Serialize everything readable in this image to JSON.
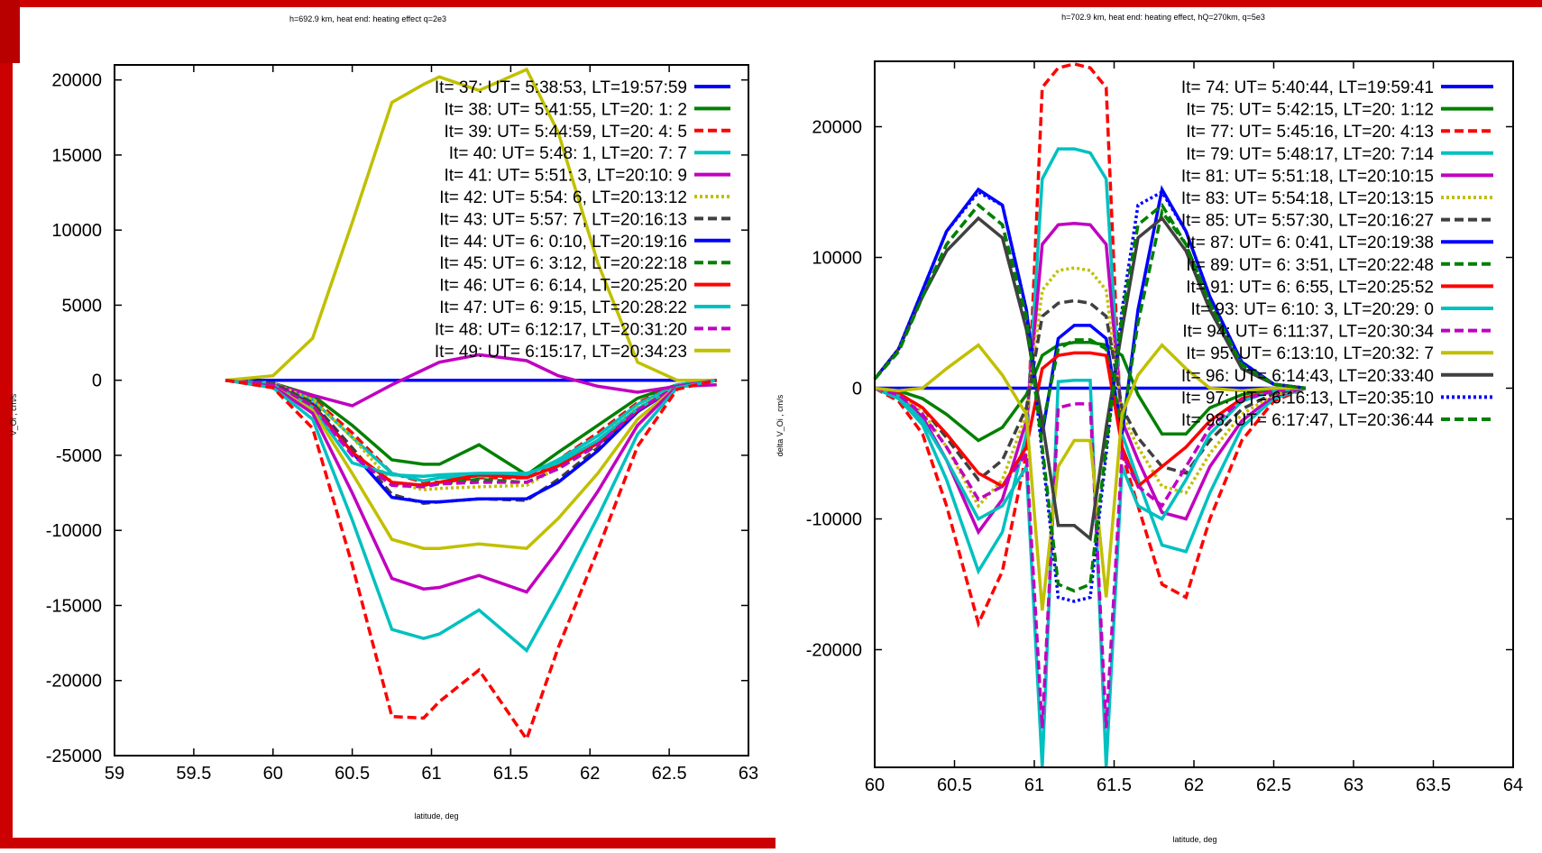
{
  "colors": {
    "frame_red": "#cc0000"
  },
  "chart_data": [
    {
      "type": "line",
      "title": "h=692.9 km, heat end: heating effect q=2e3",
      "xlabel": "latitude, deg",
      "ylabel": "V_Oi , cm/s",
      "xlim": [
        59,
        63
      ],
      "ylim": [
        -25000,
        21000
      ],
      "xticks": [
        59,
        59.5,
        60,
        60.5,
        61,
        61.5,
        62,
        62.5,
        63
      ],
      "xtick_labels": [
        "59",
        "59.5",
        "60",
        "60.5",
        "61",
        "61.5",
        "62",
        "62.5",
        "63"
      ],
      "yticks": [
        -25000,
        -20000,
        -15000,
        -10000,
        -5000,
        0,
        5000,
        10000,
        15000,
        20000
      ],
      "ytick_labels": [
        "-25000",
        "-20000",
        "-15000",
        "-10000",
        "-5000",
        "0",
        "5000",
        "10000",
        "15000",
        "20000"
      ],
      "grid": false,
      "legend_position": "top-right",
      "x": [
        59.7,
        60,
        60.25,
        60.5,
        60.75,
        60.95,
        61.05,
        61.3,
        61.6,
        61.8,
        62.05,
        62.3,
        62.55,
        62.8
      ],
      "series": [
        {
          "name": "It= 37: UT= 5:38:53, LT=19:57:59",
          "color": "#0000ff",
          "dash": "solid",
          "values": [
            0,
            0,
            0,
            0,
            0,
            0,
            0,
            0,
            0,
            0,
            0,
            0,
            0,
            0
          ]
        },
        {
          "name": "It= 38: UT= 5:41:55, LT=20: 1: 2",
          "color": "#008000",
          "dash": "solid",
          "values": [
            0,
            -200,
            -1000,
            -3000,
            -5300,
            -5600,
            -5600,
            -4300,
            -6300,
            -4800,
            -3000,
            -1200,
            -300,
            0
          ]
        },
        {
          "name": "It= 39: UT= 5:44:59, LT=20: 4: 5",
          "color": "#ff0000",
          "dash": "dashed",
          "values": [
            0,
            -200,
            -1200,
            -3500,
            -6200,
            -6800,
            -6800,
            -6500,
            -6500,
            -5300,
            -3500,
            -1500,
            -300,
            0
          ]
        },
        {
          "name": "It= 40: UT= 5:48: 1, LT=20: 7: 7",
          "color": "#00c0c0",
          "dash": "solid",
          "values": [
            0,
            -200,
            -1300,
            -3800,
            -6200,
            -6700,
            -6500,
            -6400,
            -6300,
            -5300,
            -3700,
            -1600,
            -300,
            0
          ]
        },
        {
          "name": "It= 41: UT= 5:51: 3, LT=20:10: 9",
          "color": "#c000c0",
          "dash": "solid",
          "values": [
            0,
            -300,
            -1000,
            -1700,
            -300,
            700,
            1200,
            1700,
            1300,
            300,
            -400,
            -800,
            -400,
            -300
          ]
        },
        {
          "name": "It= 42: UT= 5:54: 6, LT=20:13:12",
          "color": "#c0c000",
          "dash": "dotted",
          "values": [
            0,
            -200,
            -1300,
            -3800,
            -6800,
            -7300,
            -7200,
            -7100,
            -7000,
            -5800,
            -4000,
            -1800,
            -400,
            0
          ]
        },
        {
          "name": "It= 43: UT= 5:57: 7, LT=20:16:13",
          "color": "#404040",
          "dash": "dashed",
          "values": [
            0,
            -200,
            -1500,
            -4500,
            -7600,
            -8200,
            -8100,
            -7900,
            -8000,
            -6600,
            -4500,
            -2000,
            -400,
            0
          ]
        },
        {
          "name": "It= 44: UT= 6: 0:10, LT=20:19:16",
          "color": "#0000ff",
          "dash": "solid",
          "values": [
            0,
            -300,
            -1600,
            -4800,
            -7800,
            -8100,
            -8100,
            -7900,
            -7900,
            -6800,
            -4700,
            -2100,
            -400,
            0
          ]
        },
        {
          "name": "It= 45: UT= 6: 3:12, LT=20:22:18",
          "color": "#008000",
          "dash": "dashed",
          "values": [
            0,
            -300,
            -1600,
            -4900,
            -6900,
            -7000,
            -6900,
            -6600,
            -6800,
            -5900,
            -4300,
            -2000,
            -400,
            0
          ]
        },
        {
          "name": "It= 46: UT= 6: 6:14, LT=20:25:20",
          "color": "#ff0000",
          "dash": "solid",
          "values": [
            0,
            -300,
            -1700,
            -4800,
            -6800,
            -7000,
            -6800,
            -6300,
            -6500,
            -5700,
            -4200,
            -2000,
            -400,
            0
          ]
        },
        {
          "name": "It= 47: UT= 6: 9:15, LT=20:28:22",
          "color": "#00c0c0",
          "dash": "solid",
          "values": [
            0,
            -300,
            -1800,
            -5500,
            -6300,
            -6400,
            -6300,
            -6200,
            -6200,
            -5500,
            -4000,
            -1900,
            -400,
            0
          ]
        },
        {
          "name": "It= 48: UT= 6:12:17, LT=20:31:20",
          "color": "#c000c0",
          "dash": "dashed",
          "values": [
            0,
            -300,
            -1700,
            -5000,
            -7000,
            -7100,
            -6900,
            -6800,
            -6800,
            -5900,
            -4300,
            -2000,
            -400,
            0
          ]
        },
        {
          "name": "It= 49: UT= 6:15:17, LT=20:34:23",
          "color": "#c0c000",
          "dash": "solid",
          "values": [
            0,
            300,
            2800,
            10500,
            18500,
            19700,
            20200,
            19300,
            20700,
            16500,
            7800,
            1200,
            0,
            0
          ]
        },
        {
          "name": "",
          "color": "#c0c000",
          "dash": "solid",
          "values": [
            0,
            -400,
            -2000,
            -6200,
            -10600,
            -11200,
            -11200,
            -10900,
            -11200,
            -9200,
            -6200,
            -2600,
            -400,
            0
          ]
        },
        {
          "name": "",
          "color": "#c000c0",
          "dash": "solid",
          "values": [
            0,
            -400,
            -2200,
            -7500,
            -13200,
            -13900,
            -13800,
            -13000,
            -14100,
            -11300,
            -7400,
            -3000,
            -400,
            0
          ]
        },
        {
          "name": "",
          "color": "#00c0c0",
          "dash": "solid",
          "values": [
            0,
            -500,
            -2600,
            -9300,
            -16600,
            -17200,
            -16900,
            -15300,
            -18000,
            -14200,
            -9100,
            -3600,
            -500,
            0
          ]
        },
        {
          "name": "",
          "color": "#ff0000",
          "dash": "dashed",
          "values": [
            0,
            -500,
            -3200,
            -12300,
            -22400,
            -22500,
            -21400,
            -19300,
            -23900,
            -17800,
            -11300,
            -4400,
            -600,
            0
          ]
        }
      ]
    },
    {
      "type": "line",
      "title": "h=702.9 km, heat end: heating effect, hQ=270km, q=5e3",
      "xlabel": "latitude, deg",
      "ylabel": "delta V_Oi , cm/s",
      "xlim": [
        60,
        64
      ],
      "ylim": [
        -29000,
        25000
      ],
      "xticks": [
        60,
        60.5,
        61,
        61.5,
        62,
        62.5,
        63,
        63.5,
        64
      ],
      "xtick_labels": [
        "60",
        "60.5",
        "61",
        "61.5",
        "62",
        "62.5",
        "63",
        "63.5",
        "64"
      ],
      "yticks": [
        -20000,
        -10000,
        0,
        10000,
        20000
      ],
      "ytick_labels": [
        "-20000",
        "-10000",
        "0",
        "10000",
        "20000"
      ],
      "grid": false,
      "legend_position": "top-right",
      "x": [
        60,
        60.15,
        60.3,
        60.45,
        60.65,
        60.8,
        60.95,
        61.05,
        61.15,
        61.25,
        61.35,
        61.45,
        61.55,
        61.65,
        61.8,
        61.95,
        62.1,
        62.3,
        62.5,
        62.7
      ],
      "series": [
        {
          "name": "It= 74: UT= 5:40:44, LT=19:59:41",
          "color": "#0000ff",
          "dash": "solid",
          "values": [
            0,
            0,
            0,
            0,
            0,
            0,
            0,
            0,
            0,
            0,
            0,
            0,
            0,
            0,
            0,
            0,
            0,
            0,
            0,
            0
          ]
        },
        {
          "name": "It= 75: UT= 5:42:15, LT=20: 1:12",
          "color": "#008000",
          "dash": "solid",
          "values": [
            0,
            -200,
            -800,
            -2000,
            -4000,
            -3000,
            -500,
            2500,
            3300,
            3500,
            3500,
            3300,
            2500,
            -500,
            -3500,
            -3500,
            -1500,
            -500,
            0,
            0
          ]
        },
        {
          "name": "It= 77: UT= 5:45:16, LT=20: 4:13",
          "color": "#ff0000",
          "dash": "dashed",
          "values": [
            0,
            -1000,
            -3500,
            -9000,
            -18000,
            -14000,
            -5000,
            23000,
            24500,
            24800,
            24500,
            23000,
            -5000,
            -9000,
            -15000,
            -16000,
            -10000,
            -4000,
            -1000,
            0
          ]
        },
        {
          "name": "It= 79: UT= 5:48:17, LT=20: 7:14",
          "color": "#00c0c0",
          "dash": "solid",
          "values": [
            0,
            -800,
            -2800,
            -7000,
            -14000,
            -11000,
            -3500,
            16000,
            18300,
            18300,
            18000,
            16000,
            -3500,
            -7000,
            -12000,
            -12500,
            -8000,
            -3000,
            -800,
            0
          ]
        },
        {
          "name": "It= 81: UT= 5:51:18, LT=20:10:15",
          "color": "#c000c0",
          "dash": "solid",
          "values": [
            0,
            -600,
            -2200,
            -5500,
            -11000,
            -8500,
            -2500,
            11000,
            12500,
            12600,
            12500,
            11000,
            -2500,
            -5500,
            -9500,
            -10000,
            -6000,
            -2500,
            -600,
            0
          ]
        },
        {
          "name": "It= 83: UT= 5:54:18, LT=20:13:15",
          "color": "#c0c000",
          "dash": "dotted",
          "values": [
            0,
            -500,
            -1800,
            -4500,
            -9000,
            -7000,
            -2000,
            7500,
            9000,
            9200,
            9000,
            7500,
            -2000,
            -4500,
            -7500,
            -8000,
            -5000,
            -2000,
            -500,
            0
          ]
        },
        {
          "name": "It= 85: UT= 5:57:30, LT=20:16:27",
          "color": "#404040",
          "dash": "dashed",
          "values": [
            0,
            -400,
            -1500,
            -3800,
            -7000,
            -5500,
            -1500,
            5500,
            6500,
            6700,
            6500,
            5500,
            -1500,
            -3800,
            -6000,
            -6500,
            -4000,
            -1600,
            -400,
            0
          ]
        },
        {
          "name": "It= 87: UT= 6: 0:41, LT=20:19:38",
          "color": "#0000ff",
          "dash": "solid",
          "values": [
            700,
            3000,
            7500,
            12000,
            15200,
            14000,
            6000,
            -3500,
            3800,
            4800,
            4800,
            3800,
            -3500,
            6000,
            15200,
            12000,
            7000,
            2000,
            300,
            0
          ]
        },
        {
          "name": "It= 89: UT= 6: 3:51, LT=20:22:48",
          "color": "#008000",
          "dash": "dashed",
          "values": [
            700,
            2800,
            7000,
            11000,
            14000,
            12500,
            5000,
            -3000,
            3000,
            3700,
            3700,
            3000,
            -3000,
            5000,
            13500,
            11000,
            6500,
            1800,
            300,
            0
          ]
        },
        {
          "name": "It= 91: UT= 6: 6:55, LT=20:25:52",
          "color": "#ff0000",
          "dash": "solid",
          "values": [
            0,
            -400,
            -1500,
            -3500,
            -6500,
            -7500,
            -4500,
            1500,
            2500,
            2700,
            2700,
            2500,
            -4500,
            -7500,
            -6000,
            -4500,
            -2500,
            -800,
            -200,
            0
          ]
        },
        {
          "name": "It= 93: UT= 6:10: 3, LT=20:29: 0",
          "color": "#00c0c0",
          "dash": "solid",
          "values": [
            0,
            -600,
            -2500,
            -5500,
            -10000,
            -9000,
            -6000,
            -29000,
            500,
            600,
            600,
            -29000,
            -6000,
            -9000,
            -10000,
            -7000,
            -3500,
            -1000,
            -200,
            0
          ]
        },
        {
          "name": "It= 94: UT= 6:11:37, LT=20:30:34",
          "color": "#c000c0",
          "dash": "dashed",
          "values": [
            0,
            -500,
            -2000,
            -4500,
            -8500,
            -7500,
            -5000,
            -26000,
            -1500,
            -1200,
            -1200,
            -26000,
            -5000,
            -7500,
            -9000,
            -6000,
            -3000,
            -900,
            -200,
            0
          ]
        },
        {
          "name": "It= 95: UT= 6:13:10, LT=20:32: 7",
          "color": "#c0c000",
          "dash": "solid",
          "values": [
            0,
            -200,
            0,
            1500,
            3300,
            1000,
            -2000,
            -17000,
            -6000,
            -4000,
            -4000,
            -16000,
            -2000,
            1000,
            3300,
            1500,
            0,
            -200,
            0,
            0
          ]
        },
        {
          "name": "It= 96: UT= 6:14:43, LT=20:33:40",
          "color": "#404040",
          "dash": "solid",
          "values": [
            700,
            3000,
            7000,
            10500,
            13000,
            11500,
            4500,
            -2500,
            -10500,
            -10500,
            -11500,
            -3000,
            4500,
            11500,
            13000,
            10500,
            6000,
            1500,
            300,
            0
          ]
        },
        {
          "name": "It= 97: UT= 6:16:13, LT=20:35:10",
          "color": "#0000ff",
          "dash": "dotted",
          "values": [
            700,
            3000,
            7500,
            12000,
            15000,
            14000,
            6000,
            -5000,
            -16000,
            -16300,
            -16000,
            -5000,
            6000,
            14000,
            15000,
            12000,
            7000,
            2000,
            300,
            0
          ]
        },
        {
          "name": "It= 98: UT= 6:17:47, LT=20:36:44",
          "color": "#008000",
          "dash": "dashed",
          "values": [
            700,
            2800,
            7000,
            11000,
            14000,
            12500,
            5500,
            -4500,
            -15000,
            -15500,
            -15000,
            -4500,
            5500,
            12500,
            14000,
            11000,
            6500,
            1800,
            300,
            0
          ]
        }
      ]
    }
  ]
}
